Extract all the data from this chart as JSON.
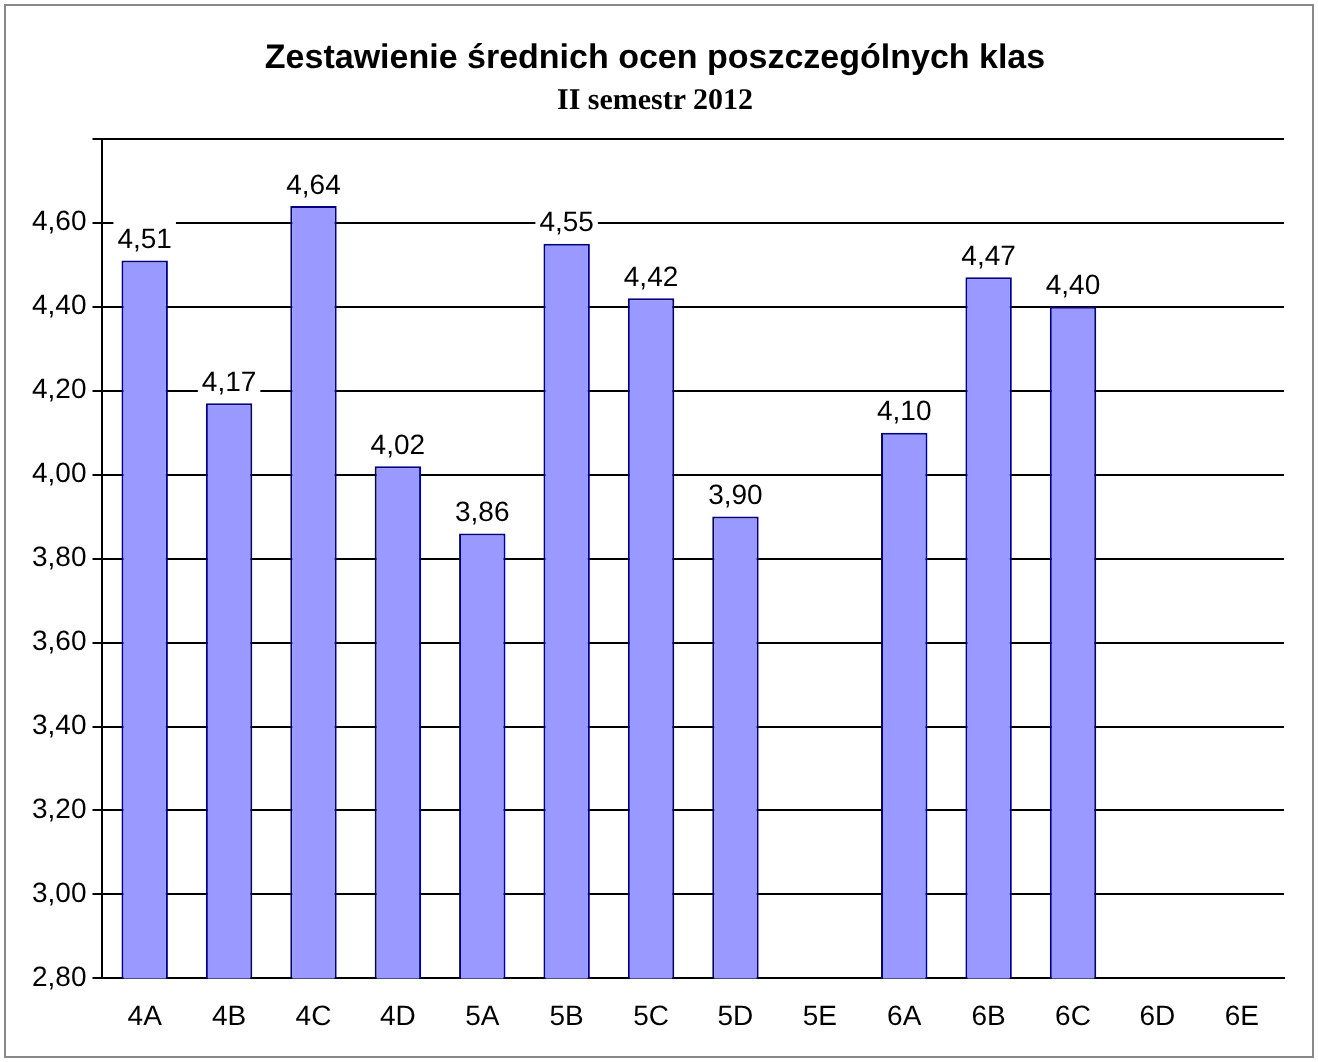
{
  "chart_data": {
    "type": "bar",
    "title": "Zestawienie średnich ocen poszczególnych klas",
    "subtitle": "II semestr 2012",
    "categories": [
      "4A",
      "4B",
      "4C",
      "4D",
      "5A",
      "5B",
      "5C",
      "5D",
      "5E",
      "6A",
      "6B",
      "6C",
      "6D",
      "6E"
    ],
    "values": [
      4.51,
      4.17,
      4.64,
      4.02,
      3.86,
      4.55,
      4.42,
      3.9,
      null,
      4.1,
      4.47,
      4.4,
      null,
      null
    ],
    "value_labels": [
      "4,51",
      "4,17",
      "4,64",
      "4,02",
      "3,86",
      "4,55",
      "4,42",
      "3,90",
      null,
      "4,10",
      "4,47",
      "4,40",
      null,
      null
    ],
    "color": "#9999ff",
    "ylim": [
      2.8,
      4.8
    ],
    "yticks": [
      {
        "value": 2.8,
        "label": "2,80"
      },
      {
        "value": 3.0,
        "label": "3,00"
      },
      {
        "value": 3.2,
        "label": "3,20"
      },
      {
        "value": 3.4,
        "label": "3,40"
      },
      {
        "value": 3.6,
        "label": "3,60"
      },
      {
        "value": 3.8,
        "label": "3,80"
      },
      {
        "value": 4.0,
        "label": "4,00"
      },
      {
        "value": 4.2,
        "label": "4,20"
      },
      {
        "value": 4.4,
        "label": "4,40"
      },
      {
        "value": 4.6,
        "label": "4,60"
      },
      {
        "value": 4.8,
        "label": null
      }
    ],
    "grid": "y",
    "legend": false
  }
}
